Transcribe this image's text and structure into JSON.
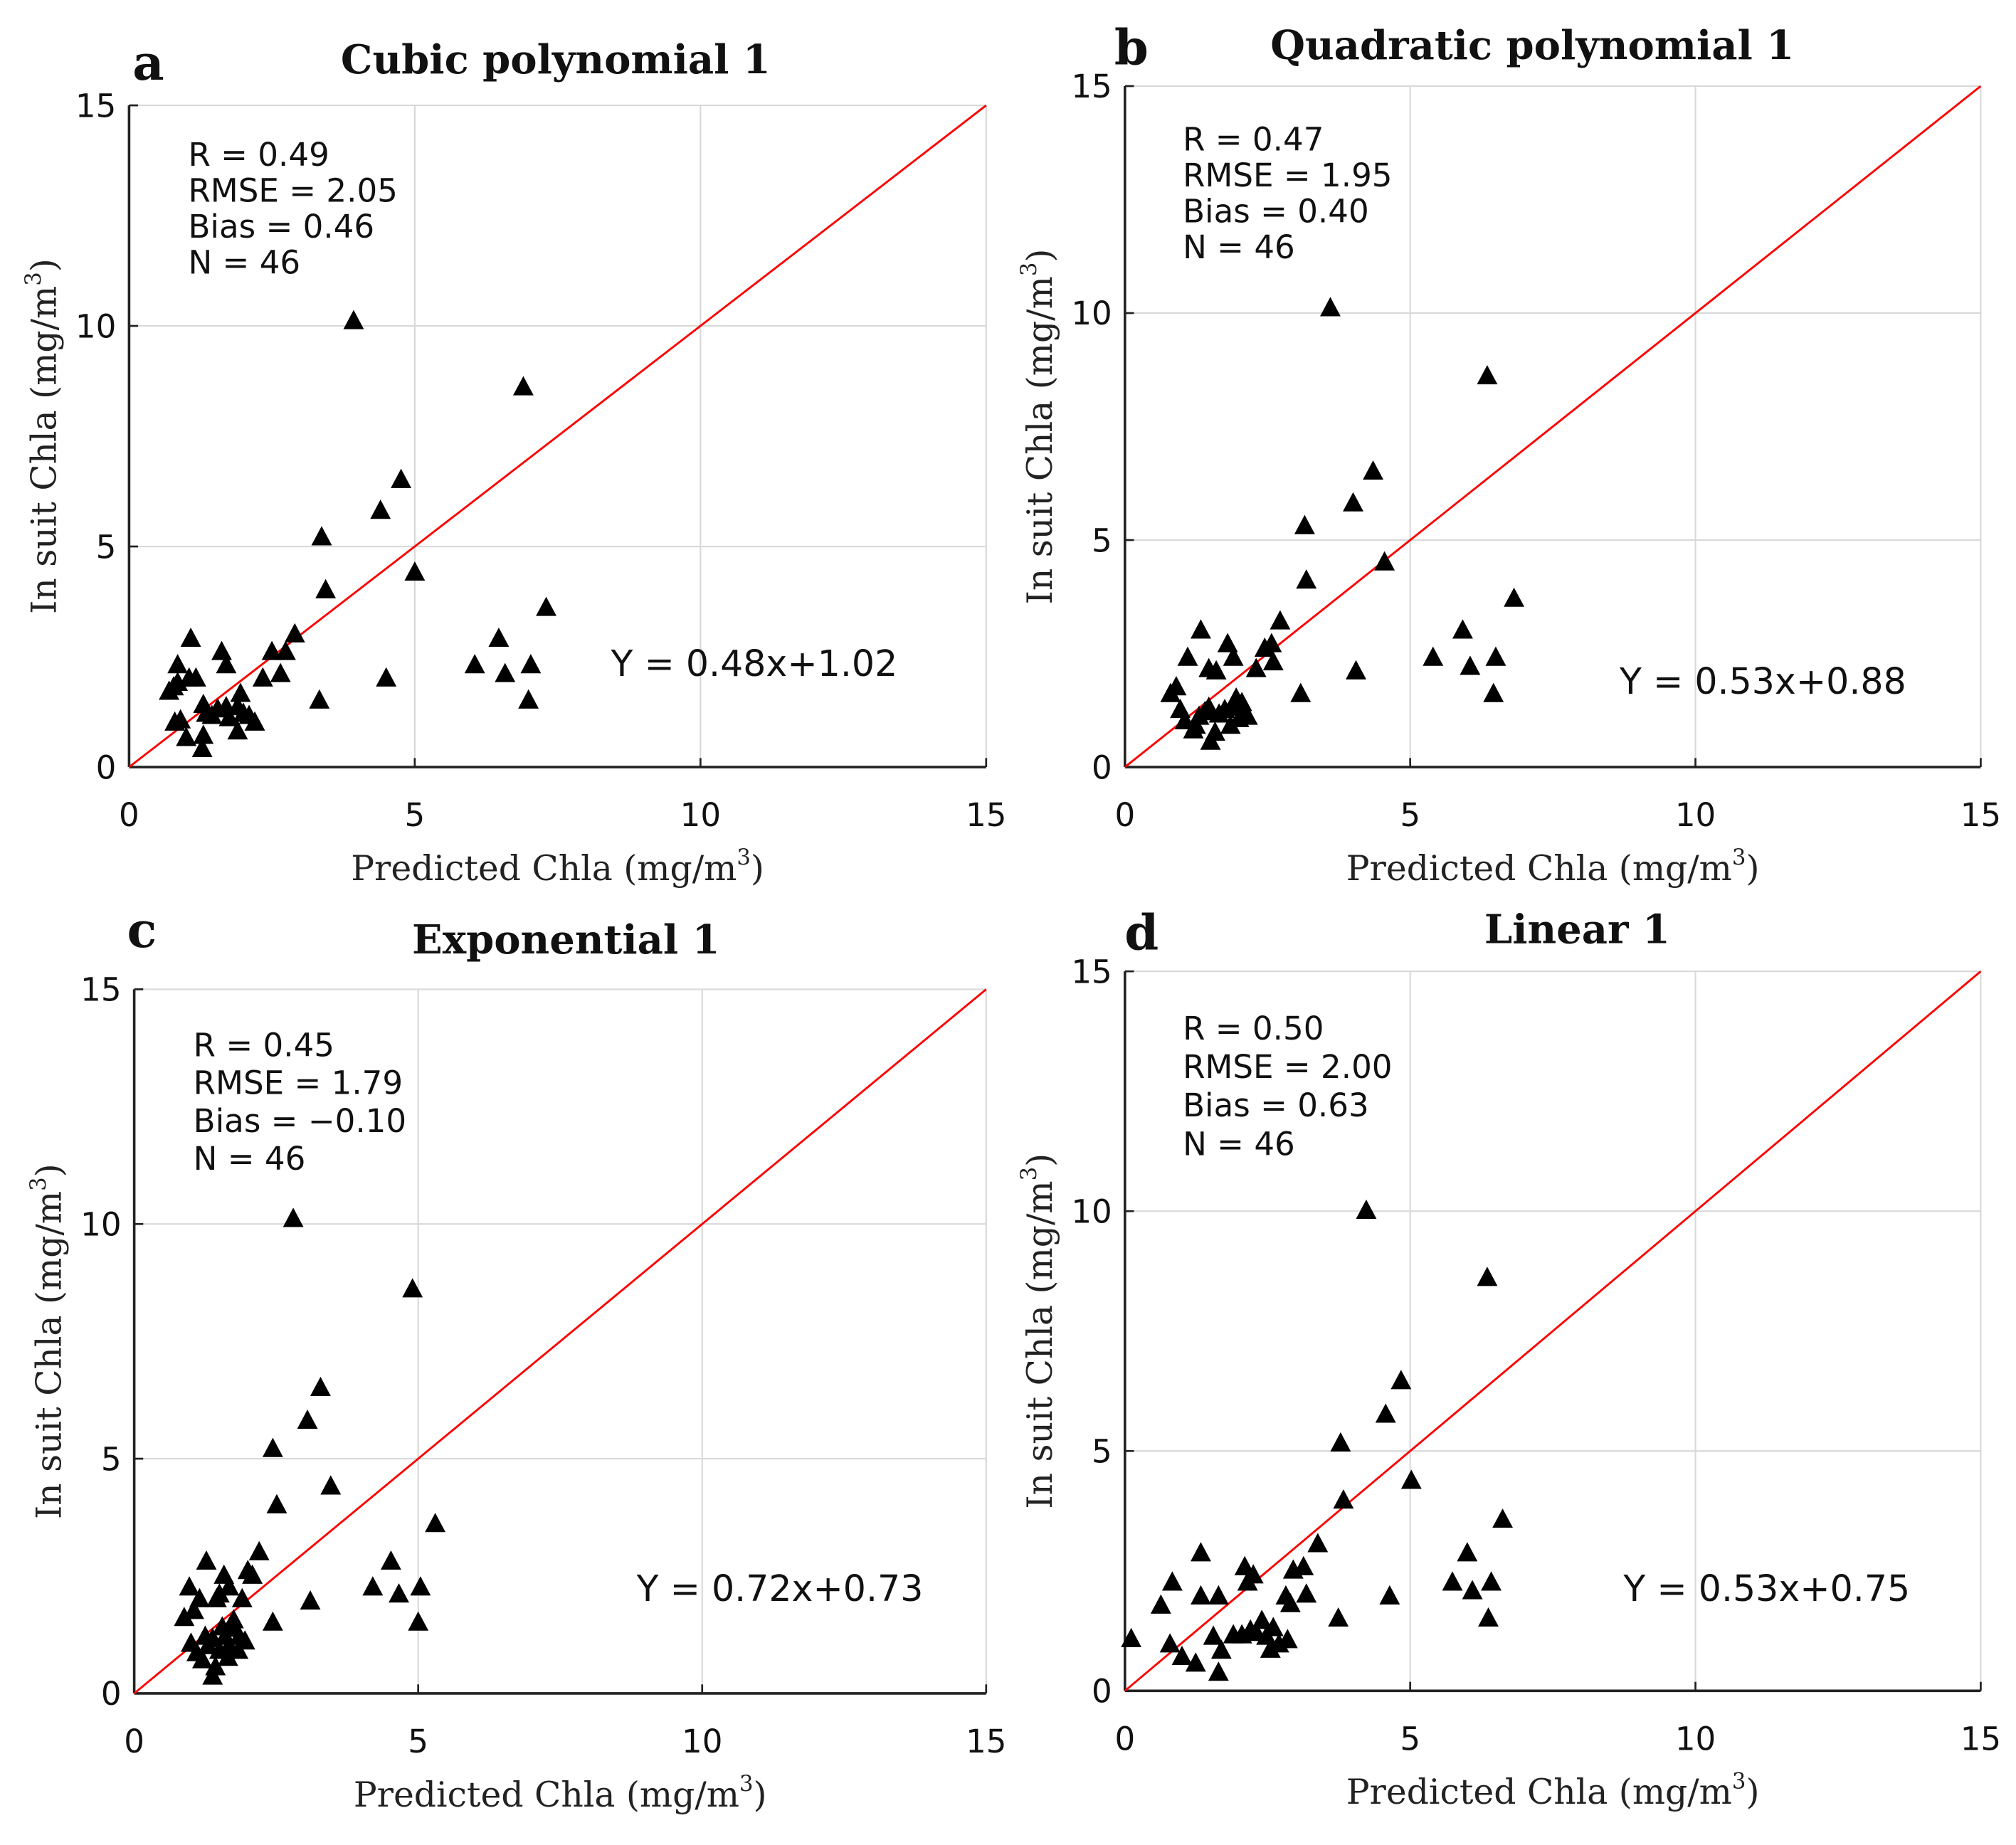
{
  "chart_data": [
    {
      "type": "scatter",
      "panel": "a",
      "title": "Cubic polynomial 1",
      "xlabel": "Predicted  Chla  (mg/m",
      "ylabel": "In  suit  Chla  (mg/m",
      "unit_sup": "3",
      "xlim": [
        0,
        15
      ],
      "ylim": [
        0,
        15
      ],
      "xticks": [
        0,
        5,
        10,
        15
      ],
      "yticks": [
        0,
        5,
        10,
        15
      ],
      "grid": true,
      "stats": [
        "R = 0.49",
        "RMSE = 2.05",
        "Bias = 0.46",
        "N = 46"
      ],
      "equation": "Y =  0.48x+1.02",
      "reference_line": {
        "slope": 1,
        "intercept": 0,
        "color": "#ff0000"
      },
      "marker": "triangle",
      "marker_color": "#000000",
      "points": [
        [
          3.93,
          10.1
        ],
        [
          6.9,
          8.6
        ],
        [
          4.76,
          6.5
        ],
        [
          4.4,
          5.8
        ],
        [
          3.37,
          5.2
        ],
        [
          5.0,
          4.4
        ],
        [
          3.44,
          4.0
        ],
        [
          7.3,
          3.6
        ],
        [
          2.9,
          3.0
        ],
        [
          1.08,
          2.9
        ],
        [
          6.47,
          2.9
        ],
        [
          1.62,
          2.6
        ],
        [
          2.74,
          2.6
        ],
        [
          2.5,
          2.6
        ],
        [
          0.85,
          2.3
        ],
        [
          1.7,
          2.3
        ],
        [
          6.05,
          2.3
        ],
        [
          7.03,
          2.3
        ],
        [
          1.17,
          2.0
        ],
        [
          4.5,
          2.0
        ],
        [
          2.34,
          2.0
        ],
        [
          2.65,
          2.1
        ],
        [
          6.58,
          2.1
        ],
        [
          0.7,
          1.7
        ],
        [
          0.78,
          1.8
        ],
        [
          3.33,
          1.5
        ],
        [
          6.99,
          1.5
        ],
        [
          1.9,
          1.35
        ],
        [
          0.9,
          1.05
        ],
        [
          1.35,
          1.2
        ],
        [
          1.75,
          1.1
        ],
        [
          2.2,
          1.0
        ],
        [
          1.0,
          0.65
        ],
        [
          1.3,
          0.7
        ],
        [
          1.9,
          0.8
        ],
        [
          1.28,
          0.4
        ],
        [
          0.8,
          1.0
        ],
        [
          1.45,
          1.15
        ],
        [
          2.0,
          1.2
        ],
        [
          1.7,
          1.35
        ],
        [
          0.85,
          1.9
        ],
        [
          1.95,
          1.65
        ],
        [
          1.3,
          1.4
        ],
        [
          1.05,
          2.0
        ],
        [
          2.1,
          1.15
        ],
        [
          1.55,
          1.3
        ]
      ]
    },
    {
      "type": "scatter",
      "panel": "b",
      "title": "Quadratic polynomial 1",
      "xlabel": "Predicted  Chla  (mg/m",
      "ylabel": "In  suit  Chla  (mg/m",
      "unit_sup": "3",
      "xlim": [
        0,
        15
      ],
      "ylim": [
        0,
        15
      ],
      "xticks": [
        0,
        5,
        10,
        15
      ],
      "yticks": [
        0,
        5,
        10,
        15
      ],
      "grid": true,
      "stats": [
        "R = 0.47",
        "RMSE = 1.95",
        "Bias = 0.40",
        "N = 46"
      ],
      "equation": "Y =  0.53x+0.88",
      "reference_line": {
        "slope": 1,
        "intercept": 0,
        "color": "#ff0000"
      },
      "marker": "triangle",
      "marker_color": "#000000",
      "points": [
        [
          3.6,
          10.1
        ],
        [
          6.35,
          8.6
        ],
        [
          4.35,
          6.5
        ],
        [
          4.0,
          5.8
        ],
        [
          3.15,
          5.3
        ],
        [
          4.55,
          4.5
        ],
        [
          3.18,
          4.1
        ],
        [
          6.82,
          3.7
        ],
        [
          2.72,
          3.2
        ],
        [
          1.33,
          3.0
        ],
        [
          5.92,
          3.0
        ],
        [
          1.8,
          2.7
        ],
        [
          2.57,
          2.7
        ],
        [
          2.45,
          2.6
        ],
        [
          1.1,
          2.4
        ],
        [
          1.9,
          2.4
        ],
        [
          5.4,
          2.4
        ],
        [
          6.5,
          2.4
        ],
        [
          1.47,
          2.15
        ],
        [
          6.05,
          2.2
        ],
        [
          4.05,
          2.1
        ],
        [
          2.3,
          2.15
        ],
        [
          2.6,
          2.3
        ],
        [
          0.9,
          1.75
        ],
        [
          1.6,
          2.1
        ],
        [
          3.08,
          1.6
        ],
        [
          6.46,
          1.6
        ],
        [
          0.97,
          1.25
        ],
        [
          1.47,
          1.3
        ],
        [
          1.9,
          1.3
        ],
        [
          2.1,
          1.2
        ],
        [
          1.24,
          0.9
        ],
        [
          1.58,
          0.75
        ],
        [
          2.0,
          1.05
        ],
        [
          1.5,
          0.55
        ],
        [
          0.8,
          1.6
        ],
        [
          1.3,
          1.1
        ],
        [
          1.75,
          1.25
        ],
        [
          2.15,
          1.1
        ],
        [
          1.65,
          1.15
        ],
        [
          1.95,
          1.5
        ],
        [
          1.2,
          0.8
        ],
        [
          1.85,
          0.9
        ],
        [
          1.05,
          1.0
        ],
        [
          2.05,
          1.4
        ],
        [
          1.4,
          1.2
        ]
      ]
    },
    {
      "type": "scatter",
      "panel": "c",
      "title": "Exponential 1",
      "xlabel": "Predicted  Chla  (mg/m",
      "ylabel": "In  suit  Chla  (mg/m",
      "unit_sup": "3",
      "xlim": [
        0,
        15
      ],
      "ylim": [
        0,
        15
      ],
      "xticks": [
        0,
        5,
        10,
        15
      ],
      "yticks": [
        0,
        5,
        10,
        15
      ],
      "grid": true,
      "stats": [
        "R = 0.45",
        "RMSE = 1.79",
        "Bias = −0.10",
        "N = 46"
      ],
      "equation": "Y =  0.72x+0.73",
      "reference_line": {
        "slope": 1,
        "intercept": 0,
        "color": "#ff0000"
      },
      "marker": "triangle",
      "marker_color": "#000000",
      "points": [
        [
          2.8,
          10.1
        ],
        [
          4.9,
          8.6
        ],
        [
          3.28,
          6.5
        ],
        [
          3.05,
          5.8
        ],
        [
          2.44,
          5.2
        ],
        [
          3.46,
          4.4
        ],
        [
          2.51,
          4.0
        ],
        [
          5.3,
          3.6
        ],
        [
          2.2,
          3.0
        ],
        [
          1.27,
          2.8
        ],
        [
          4.52,
          2.8
        ],
        [
          1.58,
          2.5
        ],
        [
          2.08,
          2.5
        ],
        [
          2.0,
          2.6
        ],
        [
          0.97,
          2.25
        ],
        [
          1.67,
          2.25
        ],
        [
          4.2,
          2.25
        ],
        [
          5.04,
          2.25
        ],
        [
          1.15,
          2.0
        ],
        [
          3.1,
          1.95
        ],
        [
          1.9,
          2.0
        ],
        [
          4.66,
          2.1
        ],
        [
          1.5,
          2.1
        ],
        [
          0.88,
          1.6
        ],
        [
          1.05,
          1.75
        ],
        [
          2.44,
          1.5
        ],
        [
          5.0,
          1.5
        ],
        [
          1.72,
          1.37
        ],
        [
          1.0,
          1.05
        ],
        [
          1.38,
          1.15
        ],
        [
          1.67,
          1.0
        ],
        [
          1.83,
          0.9
        ],
        [
          1.2,
          0.7
        ],
        [
          1.43,
          0.55
        ],
        [
          1.38,
          0.35
        ],
        [
          1.25,
          1.2
        ],
        [
          1.6,
          1.2
        ],
        [
          1.85,
          1.2
        ],
        [
          1.5,
          0.9
        ],
        [
          1.75,
          1.55
        ],
        [
          1.3,
          1.0
        ],
        [
          1.95,
          1.1
        ],
        [
          1.1,
          0.85
        ],
        [
          1.55,
          1.4
        ],
        [
          1.45,
          2.0
        ],
        [
          1.65,
          0.75
        ]
      ]
    },
    {
      "type": "scatter",
      "panel": "d",
      "title": "Linear 1",
      "xlabel": "Predicted  Chla  (mg/m",
      "ylabel": "In  suit  Chla  (mg/m",
      "unit_sup": "3",
      "xlim": [
        0,
        15
      ],
      "ylim": [
        0,
        15
      ],
      "xticks": [
        0,
        5,
        10,
        15
      ],
      "yticks": [
        0,
        5,
        10,
        15
      ],
      "grid": true,
      "stats": [
        "R = 0.50",
        "RMSE = 2.00",
        "Bias = 0.63",
        "N = 46"
      ],
      "equation": "Y =  0.53x+0.75",
      "reference_line": {
        "slope": 1,
        "intercept": 0,
        "color": "#ff0000"
      },
      "marker": "triangle",
      "marker_color": "#000000",
      "points": [
        [
          4.23,
          10.0
        ],
        [
          6.35,
          8.6
        ],
        [
          4.84,
          6.45
        ],
        [
          4.57,
          5.75
        ],
        [
          3.78,
          5.15
        ],
        [
          5.02,
          4.37
        ],
        [
          3.83,
          3.96
        ],
        [
          6.62,
          3.56
        ],
        [
          3.38,
          3.05
        ],
        [
          1.33,
          2.86
        ],
        [
          6.0,
          2.86
        ],
        [
          2.1,
          2.57
        ],
        [
          3.13,
          2.57
        ],
        [
          2.95,
          2.5
        ],
        [
          0.83,
          2.25
        ],
        [
          2.15,
          2.25
        ],
        [
          5.74,
          2.25
        ],
        [
          6.42,
          2.25
        ],
        [
          1.33,
          1.96
        ],
        [
          1.64,
          1.96
        ],
        [
          4.64,
          1.96
        ],
        [
          2.82,
          1.96
        ],
        [
          3.18,
          2.0
        ],
        [
          6.09,
          2.07
        ],
        [
          0.63,
          1.77
        ],
        [
          3.74,
          1.5
        ],
        [
          6.37,
          1.5
        ],
        [
          0.11,
          1.07
        ],
        [
          0.79,
          0.96
        ],
        [
          1.55,
          1.12
        ],
        [
          2.05,
          1.15
        ],
        [
          2.48,
          1.12
        ],
        [
          2.7,
          0.96
        ],
        [
          1.0,
          0.7
        ],
        [
          1.24,
          0.56
        ],
        [
          1.69,
          0.83
        ],
        [
          1.64,
          0.37
        ],
        [
          2.3,
          1.2
        ],
        [
          2.85,
          1.05
        ],
        [
          2.4,
          1.45
        ],
        [
          2.6,
          1.3
        ],
        [
          2.25,
          2.4
        ],
        [
          1.9,
          1.15
        ],
        [
          2.55,
          0.85
        ],
        [
          2.9,
          1.8
        ],
        [
          2.2,
          1.25
        ]
      ]
    }
  ]
}
